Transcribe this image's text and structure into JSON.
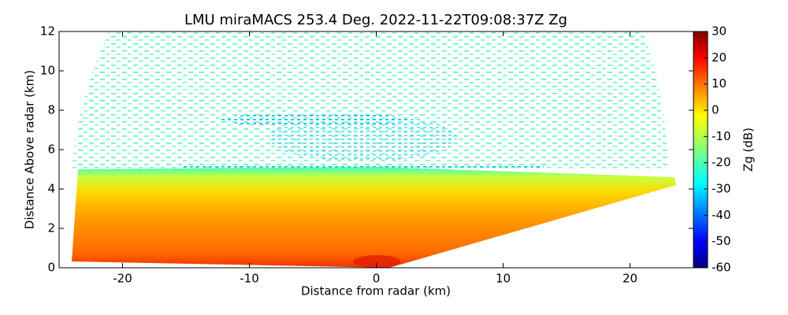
{
  "chart_data": {
    "type": "heatmap",
    "title": "LMU miraMACS 253.4 Deg. 2022-11-22T09:08:37Z  Zg",
    "x_label": "Distance from radar (km)",
    "y_label": "Distance Above radar  (km)",
    "xlim": [
      -25,
      25
    ],
    "xticks": [
      -20,
      -10,
      0,
      10,
      20
    ],
    "ylim": [
      0,
      12
    ],
    "yticks": [
      0,
      2,
      4,
      6,
      8,
      10,
      12
    ],
    "colorbar": {
      "label": "Zg (dB)",
      "colormap": "jet",
      "clim": [
        -60,
        30
      ],
      "ticks": [
        30,
        20,
        10,
        0,
        -10,
        -20,
        -30,
        -40,
        -50,
        -60
      ]
    }
  }
}
